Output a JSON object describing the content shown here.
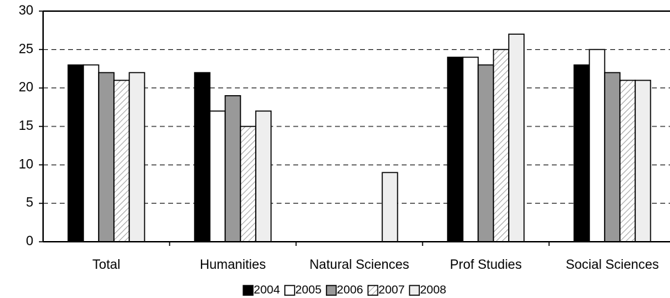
{
  "chart_data": {
    "type": "bar",
    "categories": [
      "Total",
      "Humanities",
      "Natural Sciences",
      "Prof Studies",
      "Social Sciences"
    ],
    "series": [
      {
        "name": "2004",
        "color": "#000000",
        "values": [
          23,
          22,
          null,
          24,
          23
        ]
      },
      {
        "name": "2005",
        "color": "#ffffff",
        "values": [
          23,
          17,
          null,
          24,
          25
        ]
      },
      {
        "name": "2006",
        "color": "#999999",
        "values": [
          22,
          19,
          null,
          23,
          22
        ]
      },
      {
        "name": "2007",
        "color": "#ffffff",
        "pattern": "diagonal",
        "values": [
          21,
          15,
          null,
          25,
          21
        ]
      },
      {
        "name": "2008",
        "color": "#eeeeee",
        "values": [
          22,
          17,
          9,
          27,
          21
        ]
      }
    ],
    "ylim": [
      0,
      30
    ],
    "yticks": [
      0,
      5,
      10,
      15,
      20,
      25,
      30
    ],
    "grid": true,
    "legend": "bottom"
  }
}
